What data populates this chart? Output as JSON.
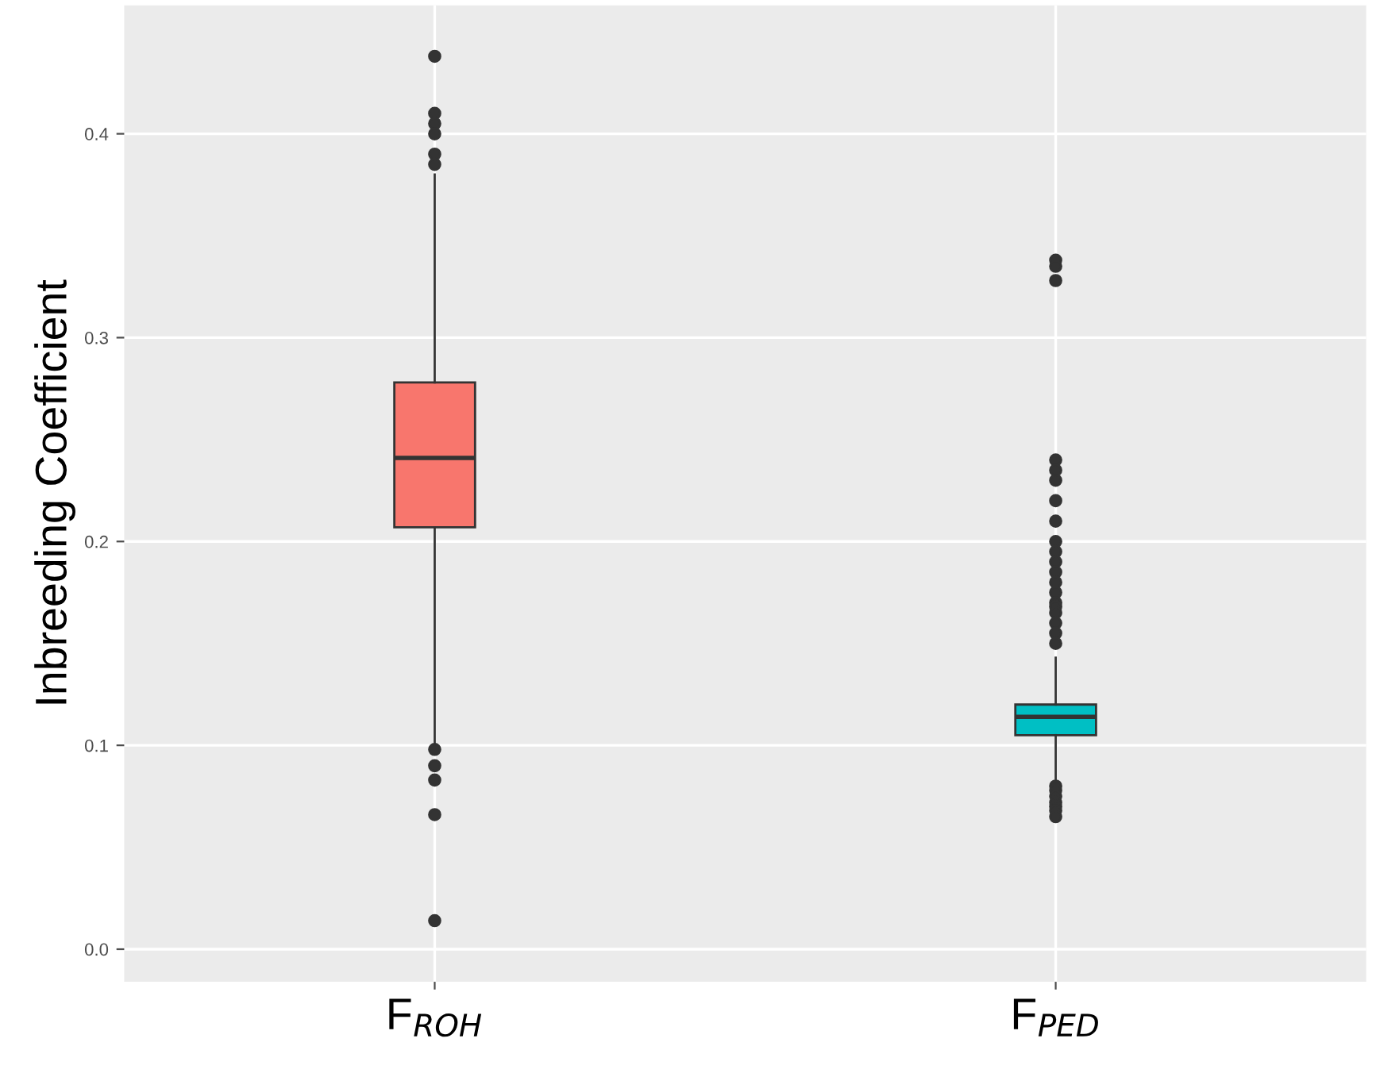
{
  "chart_data": {
    "type": "box",
    "ylabel": "Inbreeding Coefficient",
    "categories": [
      "F$_{ROH}$",
      "F$_{PED}$"
    ],
    "colors": [
      "#f8766d",
      "#00bfc4"
    ],
    "boxes": [
      {
        "low": 0.1,
        "q1": 0.207,
        "median": 0.241,
        "q3": 0.278,
        "high": 0.38,
        "outliers": [
          0.438,
          0.41,
          0.405,
          0.4,
          0.39,
          0.385,
          0.098,
          0.09,
          0.083,
          0.066,
          0.014
        ]
      },
      {
        "low": 0.083,
        "q1": 0.105,
        "median": 0.114,
        "q3": 0.12,
        "high": 0.143,
        "outliers": [
          0.338,
          0.335,
          0.328,
          0.24,
          0.235,
          0.23,
          0.22,
          0.21,
          0.2,
          0.195,
          0.19,
          0.185,
          0.18,
          0.175,
          0.17,
          0.168,
          0.165,
          0.16,
          0.155,
          0.15,
          0.08,
          0.078,
          0.075,
          0.072,
          0.07,
          0.068,
          0.065
        ]
      }
    ],
    "ylim": [
      -0.016,
      0.463
    ],
    "yticks": [
      {
        "value": 0.0,
        "label": "0.0"
      },
      {
        "value": 0.1,
        "label": "0.1"
      },
      {
        "value": 0.2,
        "label": "0.2"
      },
      {
        "value": 0.3,
        "label": "0.3"
      },
      {
        "value": 0.4,
        "label": "0.4"
      }
    ],
    "grid": true
  }
}
